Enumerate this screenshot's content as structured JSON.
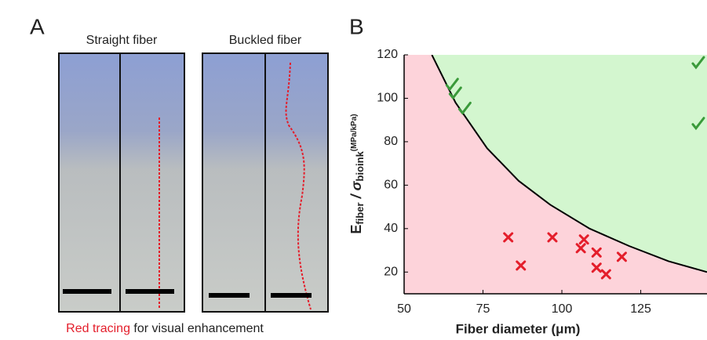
{
  "panel_a": {
    "label": "A",
    "titles": [
      "Straight fiber",
      "Buckled fiber"
    ],
    "caption_red": "Red tracing",
    "caption_rest": "for visual enhancement"
  },
  "chart_data": {
    "type": "scatter",
    "panel_label": "B",
    "x_label": "Fiber diameter (μm)",
    "y_label": {
      "main": "E",
      "sub1": "fiber",
      "mid": " / σ",
      "sub2": "bioink",
      "unit": "(MPa/kPa)"
    },
    "xlim": [
      50,
      146
    ],
    "xticks": [
      50,
      75,
      100,
      125
    ],
    "ylim": [
      10,
      120
    ],
    "yticks": [
      20,
      40,
      60,
      80,
      100,
      120
    ],
    "fill_below": "#fdd3da",
    "fill_above": "#d3f6cf",
    "boundary": {
      "color": "#000000",
      "x": [
        58.8,
        66.3,
        76.3,
        86.3,
        96.3,
        108.8,
        121.3,
        133.8,
        146
      ],
      "values": [
        120,
        98,
        77,
        62,
        51,
        40,
        32,
        25,
        20
      ]
    },
    "series": [
      {
        "marker": "x",
        "color": "#e41e2b",
        "x": [
          83,
          87,
          97,
          107,
          106,
          111,
          111,
          114,
          119
        ],
        "values": [
          36,
          23,
          36,
          35,
          31,
          29,
          22,
          19,
          27
        ]
      },
      {
        "marker": "check",
        "color": "#3a9a3a",
        "x": [
          65,
          66,
          69,
          143,
          143
        ],
        "values": [
          106,
          102,
          95,
          116,
          88
        ]
      }
    ]
  }
}
